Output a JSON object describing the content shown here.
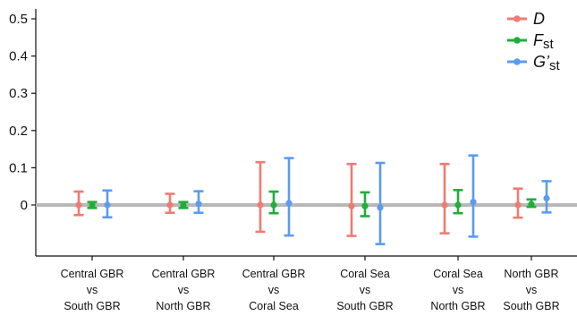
{
  "chart_data": {
    "type": "errorbar",
    "title": "",
    "xlabel": "",
    "ylabel": "",
    "ylim": [
      -0.14,
      0.52
    ],
    "y_ticks": [
      0,
      0.1,
      0.2,
      0.3,
      0.4,
      0.5
    ],
    "y_tick_labels": [
      "0",
      "0.1",
      "0.2",
      "0.3",
      "0.4",
      "0.5"
    ],
    "reference_line": 0,
    "grid": false,
    "legend_position": "top-right",
    "categories": [
      [
        "Central GBR",
        "vs",
        "South GBR"
      ],
      [
        "Central GBR",
        "vs",
        "North GBR"
      ],
      [
        "Central GBR",
        "vs",
        "Coral Sea"
      ],
      [
        "Coral Sea",
        "vs",
        "South GBR"
      ],
      [
        "Coral Sea",
        "vs",
        "North GBR"
      ],
      [
        "North GBR",
        "vs",
        "South GBR"
      ]
    ],
    "series": [
      {
        "name": "D",
        "legend": {
          "main": "D",
          "sub": "",
          "italic": true
        },
        "color": "#f07b72",
        "points": [
          {
            "value": 0.0,
            "lower": -0.027,
            "upper": 0.036
          },
          {
            "value": 0.0,
            "lower": -0.021,
            "upper": 0.03
          },
          {
            "value": 0.0,
            "lower": -0.072,
            "upper": 0.115
          },
          {
            "value": -0.003,
            "lower": -0.083,
            "upper": 0.11
          },
          {
            "value": 0.0,
            "lower": -0.076,
            "upper": 0.11
          },
          {
            "value": 0.0,
            "lower": -0.034,
            "upper": 0.044
          }
        ]
      },
      {
        "name": "Fst",
        "legend": {
          "main": "F",
          "sub": "st",
          "italic": true
        },
        "color": "#1fae3a",
        "points": [
          {
            "value": 0.0,
            "lower": -0.008,
            "upper": 0.008
          },
          {
            "value": 0.0,
            "lower": -0.008,
            "upper": 0.008
          },
          {
            "value": 0.0,
            "lower": -0.022,
            "upper": 0.036
          },
          {
            "value": -0.003,
            "lower": -0.03,
            "upper": 0.034
          },
          {
            "value": 0.0,
            "lower": -0.022,
            "upper": 0.04
          },
          {
            "value": 0.002,
            "lower": -0.005,
            "upper": 0.015
          }
        ]
      },
      {
        "name": "G'st",
        "legend": {
          "main": "G’",
          "sub": "st",
          "italic": true
        },
        "color": "#5b9bf0",
        "points": [
          {
            "value": 0.0,
            "lower": -0.033,
            "upper": 0.039
          },
          {
            "value": 0.003,
            "lower": -0.021,
            "upper": 0.037
          },
          {
            "value": 0.005,
            "lower": -0.082,
            "upper": 0.126
          },
          {
            "value": -0.007,
            "lower": -0.105,
            "upper": 0.113
          },
          {
            "value": 0.008,
            "lower": -0.085,
            "upper": 0.133
          },
          {
            "value": 0.018,
            "lower": -0.02,
            "upper": 0.064
          }
        ]
      }
    ]
  }
}
